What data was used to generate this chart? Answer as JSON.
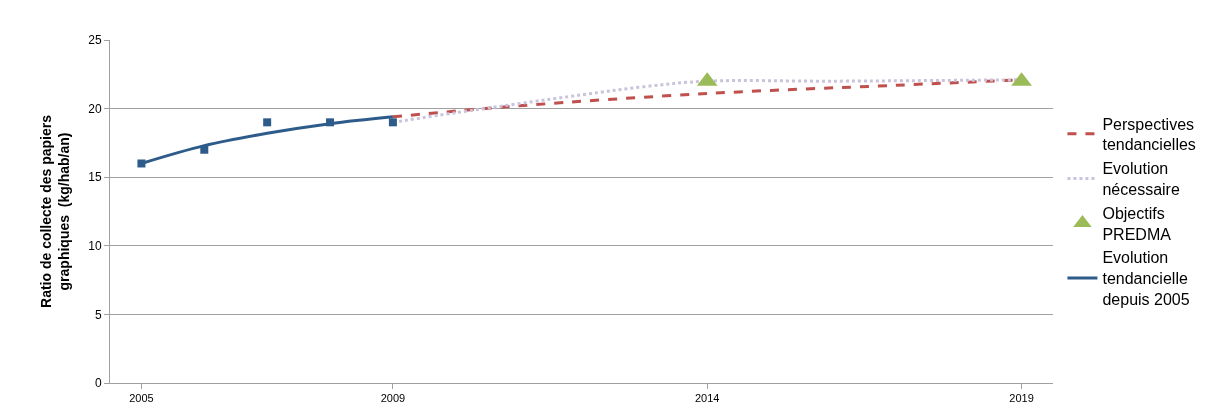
{
  "chart_data": {
    "type": "line",
    "ylabel": "Ratio de collecte des papiers\ngraphiques  (kg/hab/an)",
    "xlim": [
      2004.5,
      2019.5
    ],
    "xticks": [
      2005,
      2009,
      2014,
      2019
    ],
    "ylim": [
      0,
      25
    ],
    "yticks": [
      0,
      5,
      10,
      15,
      20,
      25
    ],
    "grid": "y",
    "legend": "right",
    "series": [
      {
        "name": "Perspectives\ntendancielles",
        "line_style": "dashed",
        "marker": "none",
        "color": "#c0504d",
        "x": [
          2009,
          2011,
          2014,
          2017,
          2019
        ],
        "values": [
          19.4,
          20.2,
          21.1,
          21.7,
          22.1
        ]
      },
      {
        "name": "Evolution\nnécessaire",
        "line_style": "dotted",
        "marker": "none",
        "color": "#c9c3dc",
        "x": [
          2009,
          2010,
          2012,
          2013,
          2014,
          2016,
          2019
        ],
        "values": [
          19.0,
          19.7,
          21.0,
          21.6,
          22.0,
          22.0,
          22.1
        ]
      },
      {
        "name": "Objectifs\nPREDMA",
        "type": "scatter",
        "marker": "triangle",
        "color": "#9bbb59",
        "x": [
          2014,
          2019
        ],
        "values": [
          22,
          22
        ]
      },
      {
        "name": "Evolution\ntendancielle\ndepuis 2005",
        "line_style": "solid",
        "marker": "none",
        "color": "#2e5c8a",
        "x": [
          2005,
          2006,
          2007,
          2008,
          2009
        ],
        "values": [
          16.0,
          17.3,
          18.2,
          18.9,
          19.4
        ]
      },
      {
        "type": "scatter",
        "marker": "square",
        "color": "#2e5c8a",
        "x": [
          2005,
          2006,
          2007,
          2008,
          2009
        ],
        "values": [
          16,
          17,
          19,
          19,
          19
        ]
      }
    ]
  }
}
